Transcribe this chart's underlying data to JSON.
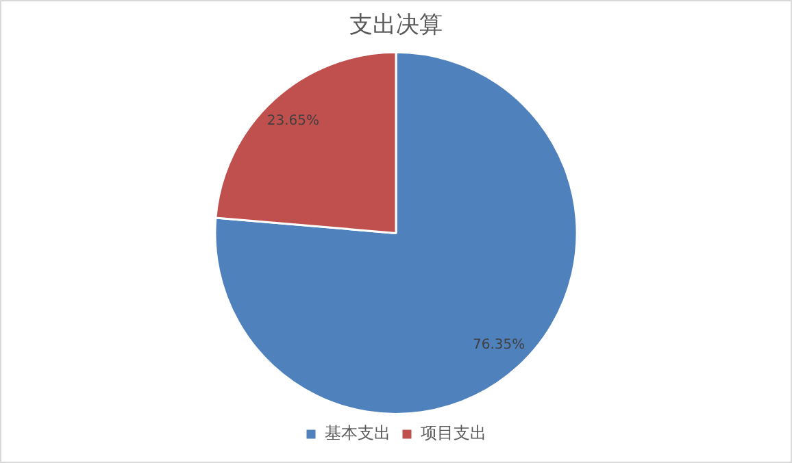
{
  "chart_data": {
    "type": "pie",
    "title": "支出决算",
    "categories": [
      "基本支出",
      "项目支出"
    ],
    "values": [
      76.35,
      23.65
    ],
    "colors": [
      "#4f81bd",
      "#c0504d"
    ],
    "value_labels": [
      "76.35%",
      "23.65%"
    ],
    "legend": "bottom"
  }
}
